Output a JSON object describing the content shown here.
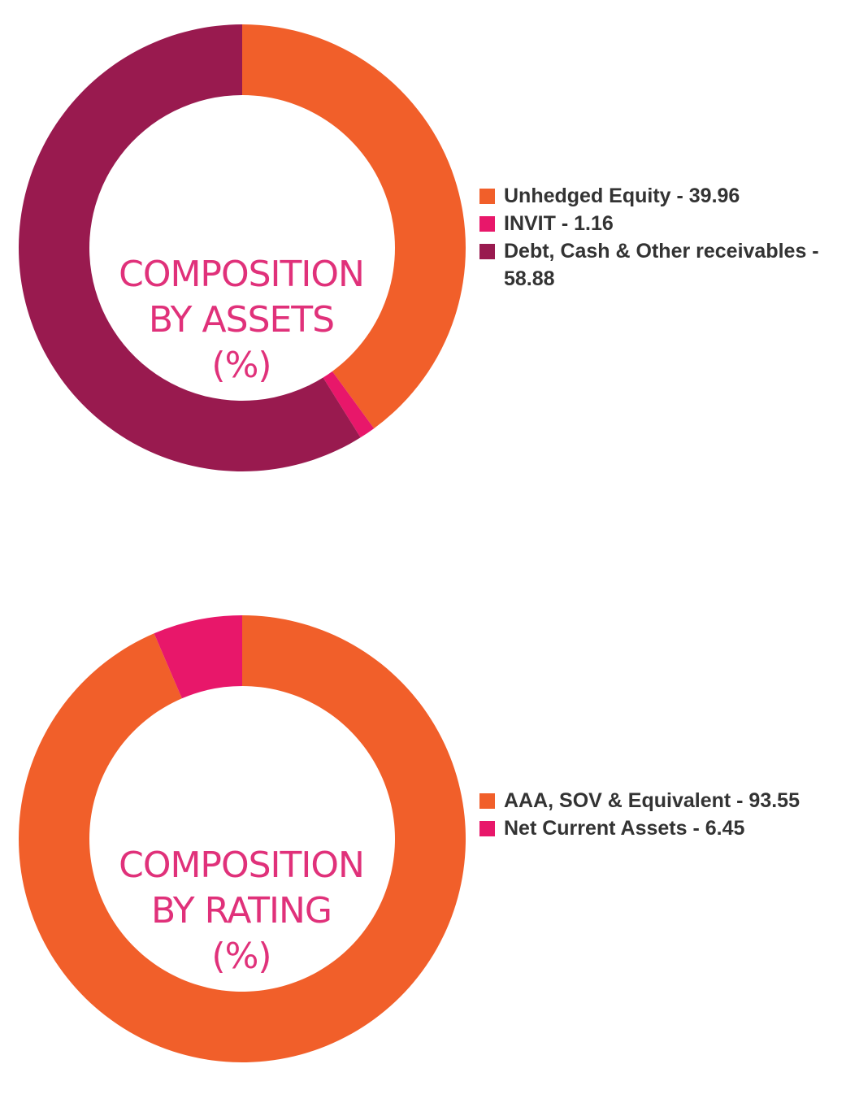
{
  "chart_data": [
    {
      "type": "pie",
      "title_lines": [
        "COMPOSITION",
        "BY ASSETS",
        "(%)"
      ],
      "slices": [
        {
          "label": "Unhedged Equity - 39.96",
          "value": 39.96,
          "color": "#f15f2a"
        },
        {
          "label": "INVIT - 1.16",
          "value": 1.16,
          "color": "#e8176a"
        },
        {
          "label": "Debt, Cash & Other receivables - 58.88",
          "value": 58.88,
          "color": "#991a4f"
        }
      ],
      "legend_position": "right"
    },
    {
      "type": "pie",
      "title_lines": [
        "COMPOSITION",
        "BY RATING",
        "(%)"
      ],
      "slices": [
        {
          "label": "AAA, SOV & Equivalent - 93.55",
          "value": 93.55,
          "color": "#f15f2a"
        },
        {
          "label": "Net Current Assets - 6.45",
          "value": 6.45,
          "color": "#e8176a"
        }
      ],
      "legend_position": "right"
    }
  ]
}
